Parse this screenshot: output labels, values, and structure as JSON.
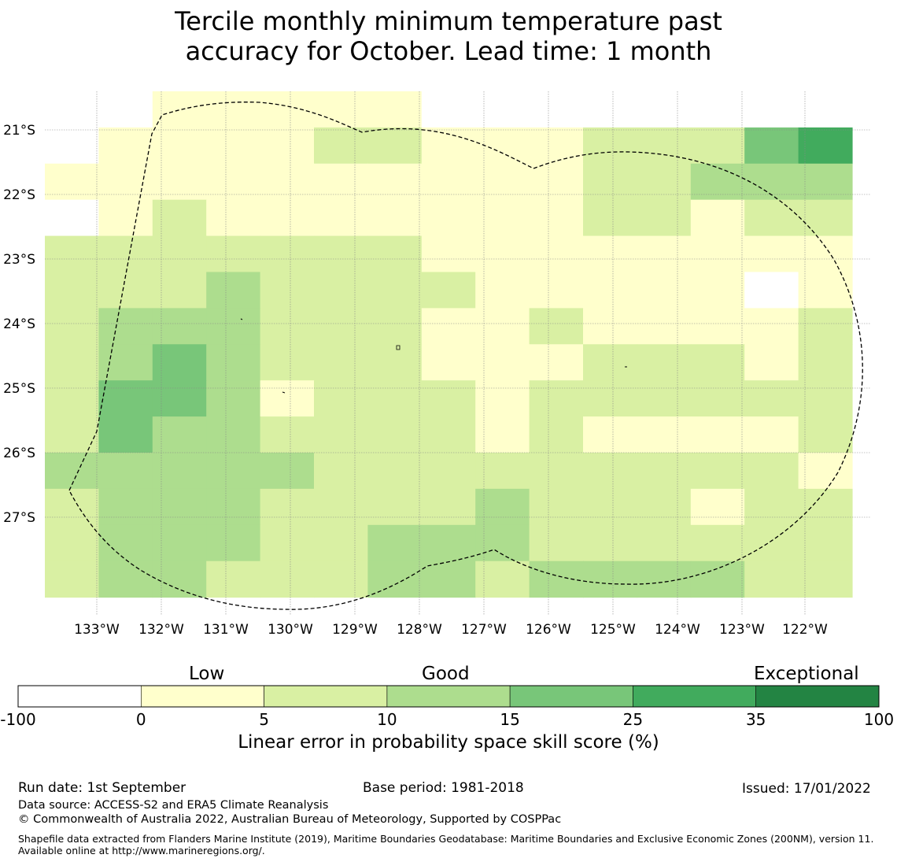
{
  "title": {
    "line1": "Tercile monthly minimum temperature past",
    "line2": "accuracy for October. Lead time: 1 month"
  },
  "map": {
    "lat_labels": [
      "21°S",
      "22°S",
      "23°S",
      "24°S",
      "25°S",
      "26°S",
      "27°S"
    ],
    "lon_labels": [
      "133°W",
      "132°W",
      "131°W",
      "130°W",
      "129°W",
      "128°W",
      "127°W",
      "126°W",
      "125°W",
      "124°W",
      "123°W",
      "122°W"
    ],
    "grid_cols": 15,
    "grid_rows": 14,
    "cell_classes": [
      "AABBBBBAAAAAAAA",
      "ABBBBCCBBBCCCEF",
      "BBBBBBBBBBCCDDD",
      "ABCBBBBBBBCCBCC",
      "CCCCCCCBBBBBBBB",
      "CCCDCCCCBBBBBAB",
      "CDDDCCCBBCBBBBC",
      "CDEDCCCBBBCCCBC",
      "CEEDBCCCBCCCCCC",
      "CEDDCCCCBCBBBBC",
      "DDDDDCCCCCCCCCB",
      "CDDDCCCCDCCCBCC",
      "CDDDCCDDDCCCCCC",
      "CDDCCCDDCDDDDCC"
    ],
    "colors": {
      "A": "#ffffff",
      "B": "#ffffcc",
      "C": "#d9f0a3",
      "D": "#addd8e",
      "E": "#78c679",
      "F": "#41ab5d",
      "G": "#238443"
    }
  },
  "colorbar": {
    "categories": [
      "Low",
      "Good",
      "Exceptional"
    ],
    "ticks": [
      "-100",
      "0",
      "5",
      "10",
      "15",
      "25",
      "35",
      "100"
    ],
    "colors": [
      "#ffffff",
      "#ffffcc",
      "#d9f0a3",
      "#addd8e",
      "#78c679",
      "#41ab5d",
      "#238443"
    ],
    "label": "Linear error in probability space skill score (%)"
  },
  "footer": {
    "run_date": "Run date: 1st September",
    "base_period": "Base period: 1981-2018",
    "issued": "Issued: 17/01/2022",
    "data_source": "Data source: ACCESS-S2 and ERA5 Climate Reanalysis",
    "copyright": "© Commonwealth of Australia 2022, Australian Bureau of Meteorology, Supported by COSPPac",
    "shapefile": "Shapefile data extracted from Flanders Marine Institute (2019), Maritime Boundaries Geodatabase: Maritime Boundaries and Exclusive Economic Zones (200NM), version 11. Available online at http://www.marineregions.org/."
  }
}
